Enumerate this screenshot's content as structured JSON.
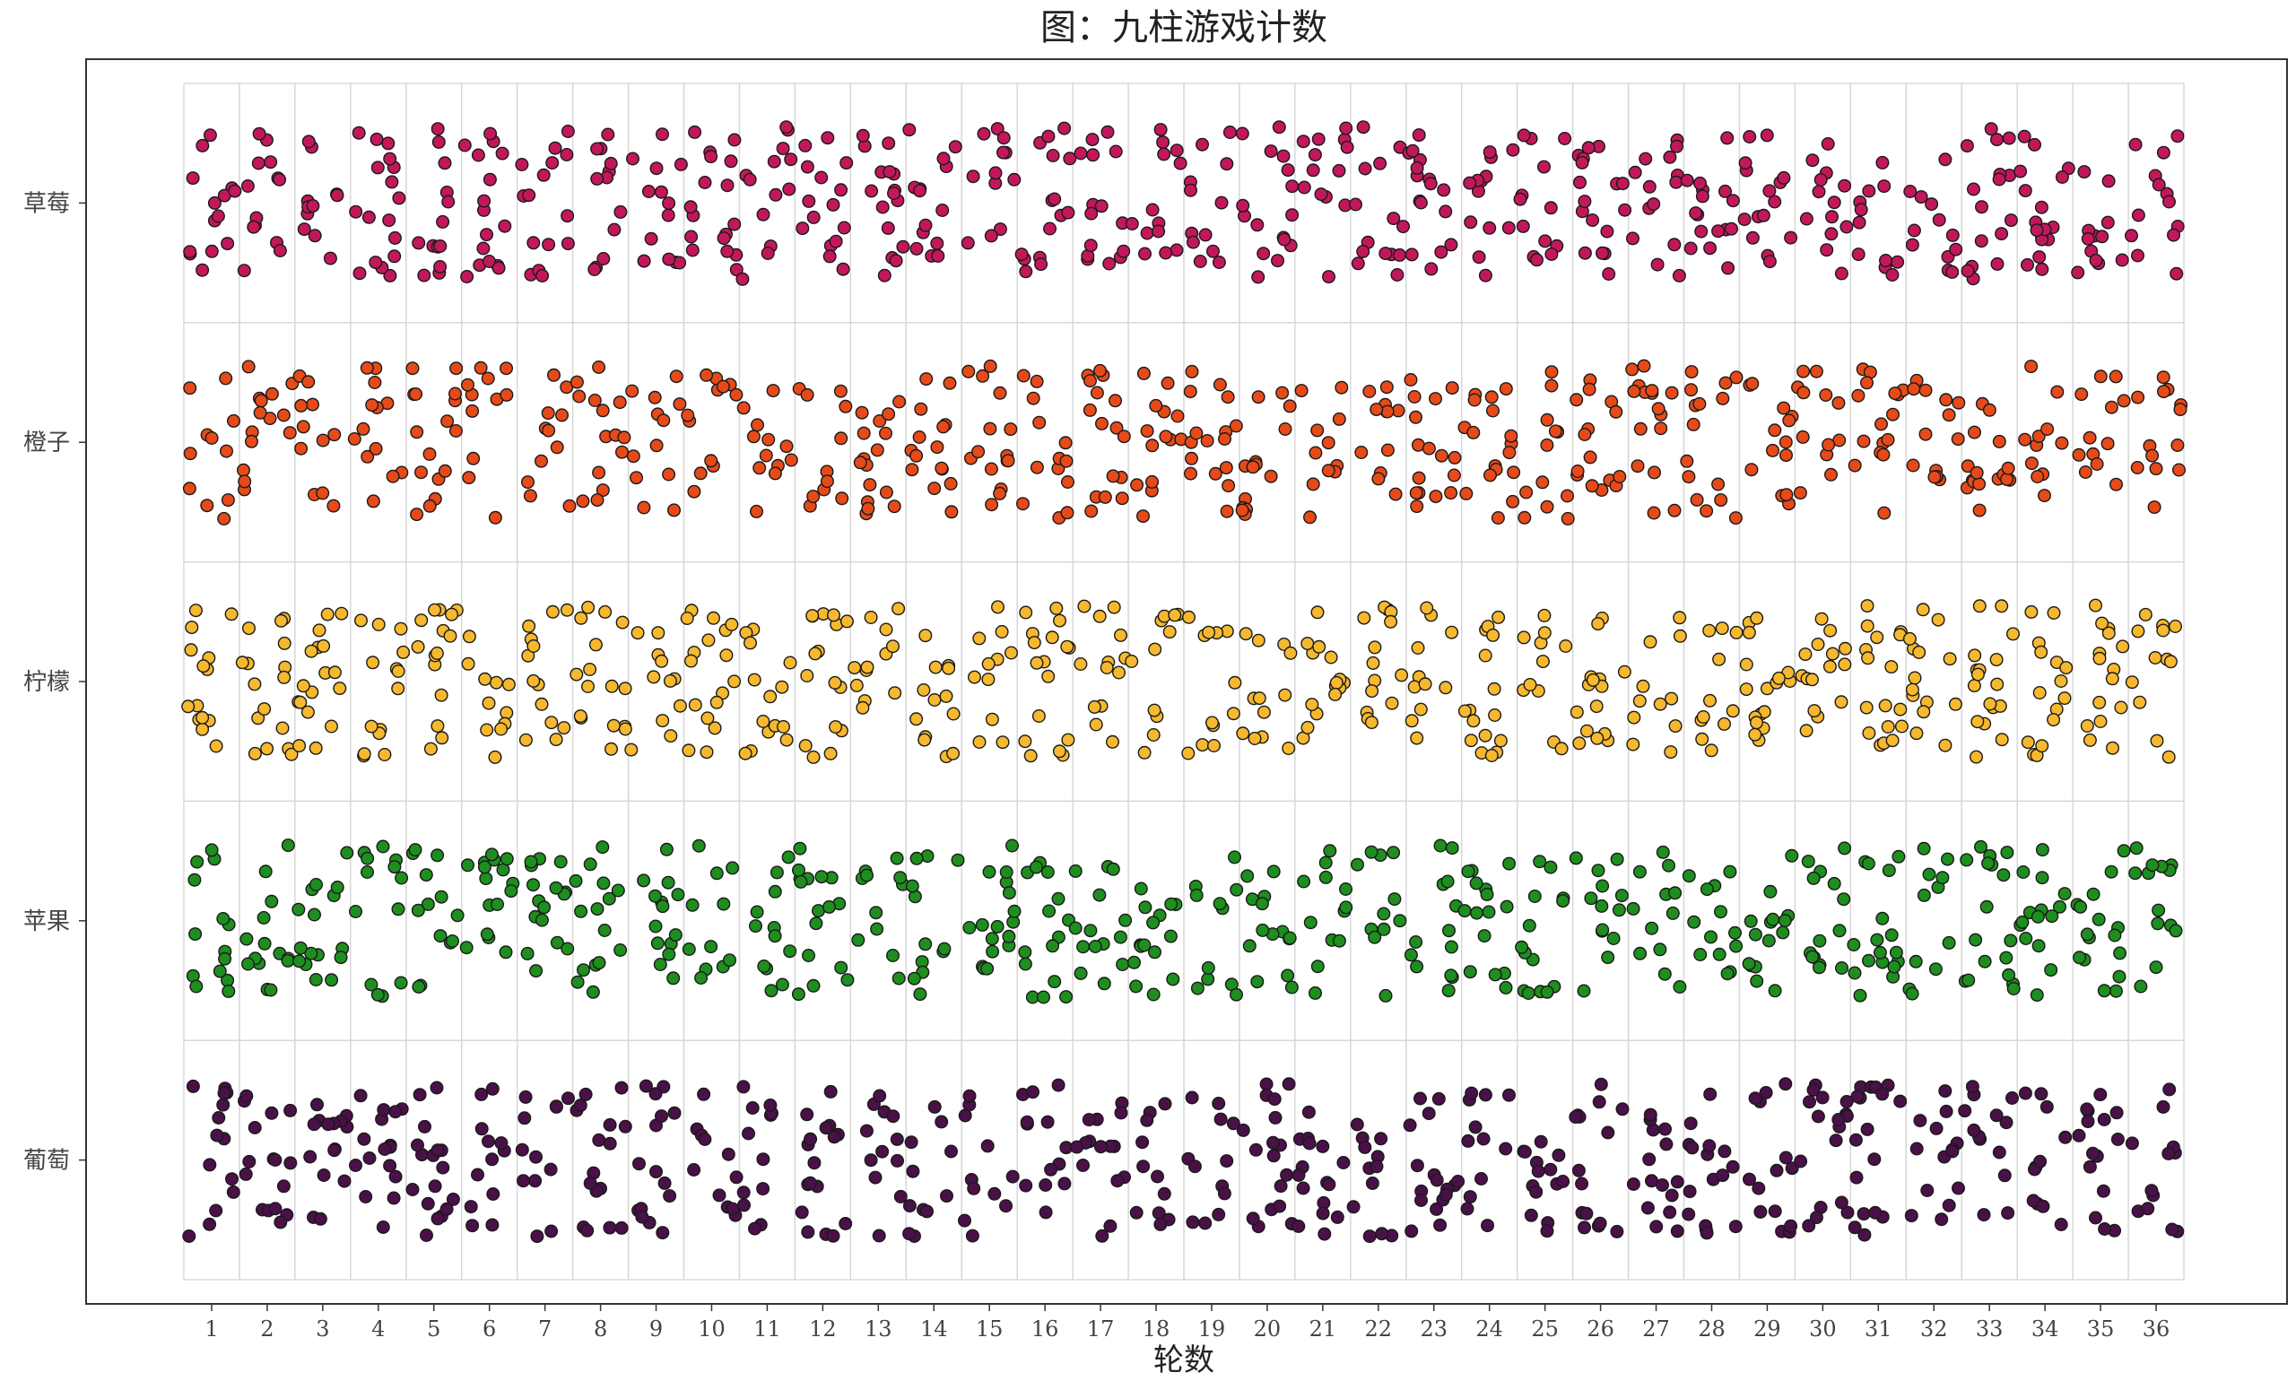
{
  "chart_data": {
    "type": "scatter",
    "title": "图：九柱游戏计数",
    "xlabel": "轮数",
    "ylabel": "",
    "x_categories": [
      "1",
      "2",
      "3",
      "4",
      "5",
      "6",
      "7",
      "8",
      "9",
      "10",
      "11",
      "12",
      "13",
      "14",
      "15",
      "16",
      "17",
      "18",
      "19",
      "20",
      "21",
      "22",
      "23",
      "24",
      "25",
      "26",
      "27",
      "28",
      "29",
      "30",
      "31",
      "32",
      "33",
      "34",
      "35",
      "36"
    ],
    "y_categories": [
      "草莓",
      "橙子",
      "柠檬",
      "苹果",
      "葡萄"
    ],
    "points_per_cell_approx": 14,
    "jitter": true,
    "grid": true,
    "legend": "none",
    "series": [
      {
        "category": "草莓",
        "color": "#C2185B"
      },
      {
        "category": "橙子",
        "color": "#E64A19"
      },
      {
        "category": "柠檬",
        "color": "#F5B82E"
      },
      {
        "category": "苹果",
        "color": "#1E8E1E"
      },
      {
        "category": "葡萄",
        "color": "#4A1048"
      }
    ],
    "point_stroke_color": "#1a1a1a"
  }
}
